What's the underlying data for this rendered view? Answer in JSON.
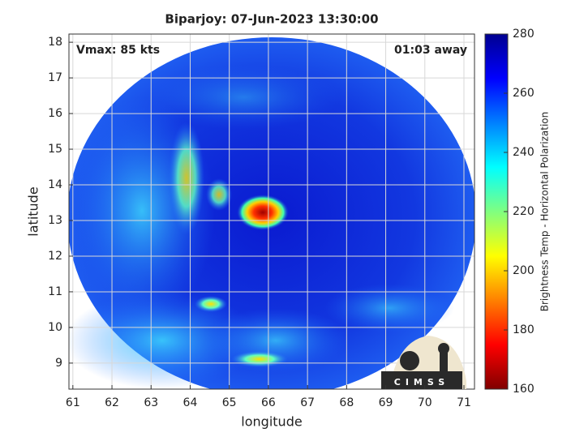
{
  "chart_data": {
    "type": "image",
    "title": "Biparjoy: 07-Jun-2023 13:30:00",
    "annotations": [
      "Vmax: 85 kts",
      "01:03 away"
    ],
    "xlabel": "longitude",
    "ylabel": "latitude",
    "xlim": [
      60.9,
      71.27
    ],
    "xticks": [
      61,
      62,
      63,
      64,
      65,
      66,
      67,
      68,
      69,
      70,
      71
    ],
    "ylim": [
      8.27,
      18.23
    ],
    "yticks": [
      9,
      10,
      11,
      12,
      13,
      14,
      15,
      16,
      17,
      18
    ],
    "grid": true,
    "colorbar": {
      "label": "Brightness Temp - Horizontal Polarization",
      "lim": [
        160,
        280
      ],
      "ticks": [
        160,
        180,
        200,
        220,
        240,
        260,
        280
      ],
      "colormap": [
        "#800000",
        "#ff0000",
        "#ff8000",
        "#ffff00",
        "#80ff80",
        "#00ffff",
        "#0080ff",
        "#0000ff",
        "#000090"
      ]
    },
    "logo_text": "CIMSS"
  }
}
